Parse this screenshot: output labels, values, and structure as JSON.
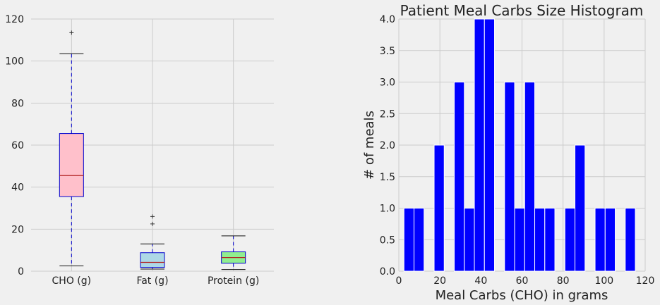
{
  "chart_data": [
    {
      "type": "box",
      "categories": [
        "CHO (g)",
        "Fat (g)",
        "Protein (g)"
      ],
      "ylim": [
        0,
        120
      ],
      "yticks": [
        0,
        20,
        40,
        60,
        80,
        100,
        120
      ],
      "grid": true,
      "boxes": [
        {
          "name": "CHO (g)",
          "q1": 35.5,
          "median": 45.5,
          "q3": 65.5,
          "whisker_low": 2.5,
          "whisker_high": 103.5,
          "outliers": [
            113.5
          ],
          "fill": "#ffc0cb"
        },
        {
          "name": "Fat (g)",
          "q1": 1.8,
          "median": 4.2,
          "q3": 8.8,
          "whisker_low": 1.0,
          "whisker_high": 13.0,
          "outliers": [
            22.5,
            26.0
          ],
          "fill": "#add8e6"
        },
        {
          "name": "Protein (g)",
          "q1": 3.8,
          "median": 6.5,
          "q3": 9.2,
          "whisker_low": 0.8,
          "whisker_high": 16.8,
          "outliers": [],
          "fill": "#90ee90"
        }
      ],
      "colors": {
        "box_edge": "#0000cc",
        "median": "#b22222",
        "whisker": "#0000cc"
      }
    },
    {
      "type": "histogram",
      "title": "Patient Meal Carbs Size Histogram",
      "xlabel": "Meal Carbs (CHO) in grams",
      "ylabel": "# of meals",
      "xlim": [
        0,
        120
      ],
      "ylim": [
        0,
        4.0
      ],
      "xticks": [
        0,
        20,
        40,
        60,
        80,
        100,
        120
      ],
      "yticks": [
        "0.0",
        "0.5",
        "1.0",
        "1.5",
        "2.0",
        "2.5",
        "3.0",
        "3.5",
        "4.0"
      ],
      "grid": true,
      "bins": [
        {
          "start": 2.5,
          "end": 7.4,
          "count": 1
        },
        {
          "start": 7.4,
          "end": 12.3,
          "count": 1
        },
        {
          "start": 17.2,
          "end": 22.1,
          "count": 2
        },
        {
          "start": 27.0,
          "end": 31.9,
          "count": 3
        },
        {
          "start": 31.9,
          "end": 36.8,
          "count": 1
        },
        {
          "start": 36.8,
          "end": 41.7,
          "count": 4
        },
        {
          "start": 41.7,
          "end": 46.6,
          "count": 4
        },
        {
          "start": 51.5,
          "end": 56.4,
          "count": 3
        },
        {
          "start": 56.4,
          "end": 61.3,
          "count": 1
        },
        {
          "start": 61.3,
          "end": 66.2,
          "count": 3
        },
        {
          "start": 66.2,
          "end": 71.1,
          "count": 1
        },
        {
          "start": 71.1,
          "end": 76.0,
          "count": 1
        },
        {
          "start": 80.9,
          "end": 85.8,
          "count": 1
        },
        {
          "start": 85.8,
          "end": 90.7,
          "count": 2
        },
        {
          "start": 95.6,
          "end": 100.5,
          "count": 1
        },
        {
          "start": 100.5,
          "end": 105.4,
          "count": 1
        },
        {
          "start": 110.3,
          "end": 115.2,
          "count": 1
        }
      ],
      "colors": {
        "bar": "#0000ff",
        "bar_edge": "#ffffff"
      }
    }
  ]
}
